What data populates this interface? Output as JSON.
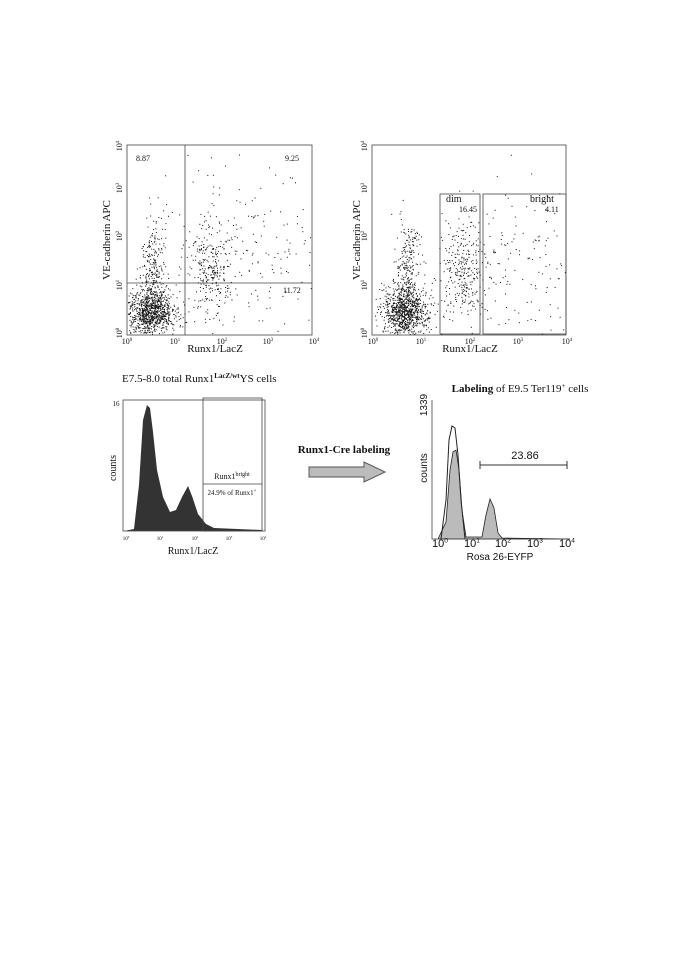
{
  "panel_a": {
    "y_label": "VE-cadherin APC",
    "x_label": "Runx1/LacZ",
    "quadrants": [
      "8.87",
      "9.25",
      "11.72"
    ],
    "ticks": [
      {
        "base": "10",
        "exp": "0"
      },
      {
        "base": "10",
        "exp": "1"
      },
      {
        "base": "10",
        "exp": "2"
      },
      {
        "base": "10",
        "exp": "3"
      },
      {
        "base": "10",
        "exp": "4"
      }
    ]
  },
  "panel_b": {
    "y_label": "VE-cadherin APC",
    "x_label": "Runx1/LacZ",
    "gates": [
      {
        "name": "dim",
        "value": "16.45"
      },
      {
        "name": "bright",
        "value": "4.11"
      }
    ],
    "ticks": [
      {
        "base": "10",
        "exp": "0"
      },
      {
        "base": "10",
        "exp": "1"
      },
      {
        "base": "10",
        "exp": "2"
      },
      {
        "base": "10",
        "exp": "3"
      },
      {
        "base": "10",
        "exp": "4"
      }
    ]
  },
  "panel_c": {
    "title": {
      "pre": "E7.5-8.0 total Runx1",
      "sup": "LacZ/wt",
      "post": "YS cells"
    },
    "y_label": "counts",
    "y_max": "16",
    "x_label": "Runx1/LacZ",
    "gate": {
      "name": "Runx1",
      "name_sup": "bright",
      "value": "24.9% of Runx1",
      "value_sup": "+"
    },
    "ticks": [
      {
        "base": "10",
        "exp": "0"
      },
      {
        "base": "10",
        "exp": "1"
      },
      {
        "base": "10",
        "exp": "2"
      },
      {
        "base": "10",
        "exp": "3"
      },
      {
        "base": "10",
        "exp": "4"
      }
    ]
  },
  "arrow": {
    "label": "Runx1-Cre labeling"
  },
  "panel_d": {
    "title": {
      "bold": "Labeling",
      "pre": " of E9.5 Ter119",
      "sup": "+",
      "post": " cells"
    },
    "y_label": "counts",
    "y_max": "1339",
    "x_label": "Rosa 26-EYFP",
    "gate_value": "23.86",
    "ticks": [
      {
        "base": "10",
        "exp": "0"
      },
      {
        "base": "10",
        "exp": "1"
      },
      {
        "base": "10",
        "exp": "2"
      },
      {
        "base": "10",
        "exp": "3"
      },
      {
        "base": "10",
        "exp": "4"
      }
    ]
  }
}
